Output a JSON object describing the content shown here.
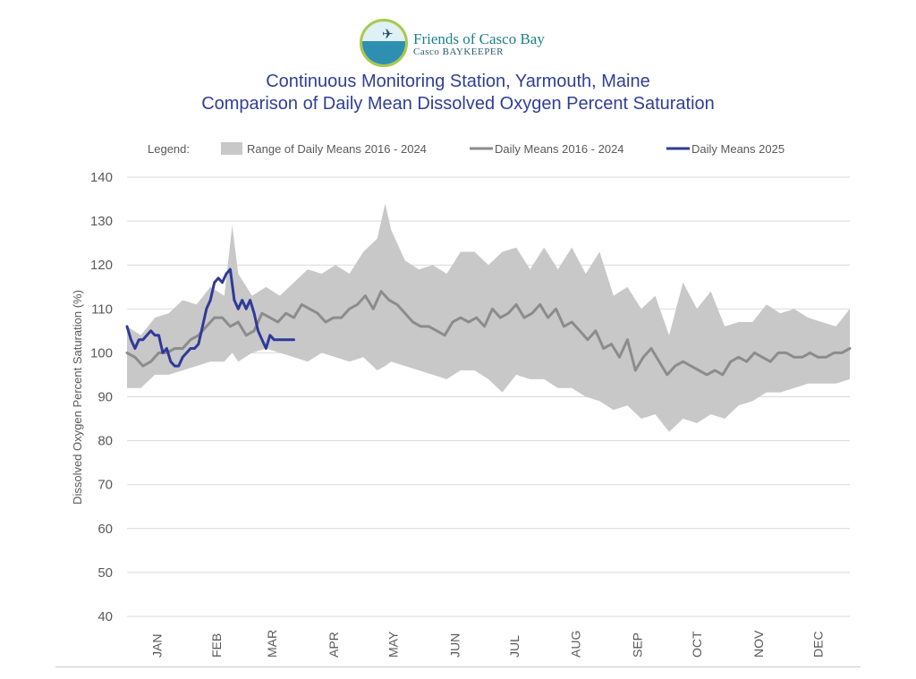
{
  "logo": {
    "line1": "Friends of Casco Bay",
    "line2": "Casco BAYKEEPER"
  },
  "title": {
    "line1": "Continuous Monitoring Station, Yarmouth, Maine",
    "line2": "Comparison of Daily Mean Dissolved Oxygen Percent Saturation"
  },
  "legend": {
    "prefix": "Legend:",
    "items": [
      {
        "label": "Range of Daily Means 2016 - 2024",
        "kind": "band",
        "color": "#c8c8c8"
      },
      {
        "label": "Daily Means 2016 - 2024",
        "kind": "line",
        "color": "#8c8c8c"
      },
      {
        "label": "Daily Means 2025",
        "kind": "line",
        "color": "#2e3a9a"
      }
    ]
  },
  "chart_data": {
    "type": "area",
    "ylabel": "Dissolved Oxygen Percent Saturation (%)",
    "xlabel": "",
    "ylim": [
      40,
      140
    ],
    "yticks": [
      40,
      50,
      60,
      70,
      80,
      90,
      100,
      110,
      120,
      130,
      140
    ],
    "xlim": [
      1,
      365
    ],
    "month_labels": [
      {
        "label": "JAN",
        "day": 16
      },
      {
        "label": "FEB",
        "day": 46
      },
      {
        "label": "MAR",
        "day": 74
      },
      {
        "label": "APR",
        "day": 105
      },
      {
        "label": "MAY",
        "day": 135
      },
      {
        "label": "JUN",
        "day": 166
      },
      {
        "label": "JUL",
        "day": 196
      },
      {
        "label": "AUG",
        "day": 227
      },
      {
        "label": "SEP",
        "day": 258
      },
      {
        "label": "OCT",
        "day": 288
      },
      {
        "label": "NOV",
        "day": 319
      },
      {
        "label": "DEC",
        "day": 349
      }
    ],
    "grid": true,
    "legend_position": "top",
    "series": [
      {
        "name": "Range of Daily Means 2016 - 2024",
        "kind": "band",
        "color": "#c8c8c8",
        "x": [
          1,
          8,
          15,
          22,
          29,
          36,
          43,
          50,
          54,
          57,
          64,
          71,
          78,
          85,
          92,
          99,
          106,
          113,
          120,
          127,
          131,
          134,
          141,
          148,
          155,
          162,
          169,
          176,
          183,
          190,
          197,
          204,
          211,
          218,
          225,
          232,
          239,
          246,
          253,
          260,
          267,
          274,
          281,
          288,
          295,
          302,
          309,
          316,
          323,
          330,
          337,
          344,
          351,
          358,
          365
        ],
        "upper": [
          106,
          104,
          108,
          109,
          112,
          111,
          115,
          113,
          129,
          118,
          113,
          115,
          113,
          116,
          119,
          118,
          120,
          118,
          123,
          126,
          134,
          128,
          121,
          119,
          120,
          118,
          123,
          123,
          120,
          123,
          124,
          119,
          124,
          119,
          124,
          118,
          123,
          113,
          115,
          110,
          113,
          104,
          116,
          110,
          114,
          106,
          107,
          107,
          111,
          109,
          110,
          108,
          107,
          106,
          110
        ],
        "lower": [
          92,
          92,
          95,
          95,
          96,
          97,
          98,
          98,
          100,
          98,
          100,
          101,
          100,
          99,
          98,
          100,
          99,
          98,
          99,
          96,
          97,
          98,
          97,
          96,
          95,
          94,
          96,
          96,
          94,
          91,
          95,
          94,
          94,
          92,
          92,
          90,
          89,
          87,
          88,
          85,
          86,
          82,
          85,
          84,
          86,
          85,
          88,
          89,
          91,
          91,
          92,
          93,
          93,
          93,
          94
        ]
      },
      {
        "name": "Daily Means 2016 - 2024",
        "kind": "line",
        "color": "#8c8c8c",
        "x": [
          1,
          5,
          9,
          13,
          17,
          21,
          25,
          29,
          33,
          37,
          41,
          45,
          49,
          53,
          57,
          61,
          65,
          69,
          73,
          77,
          81,
          85,
          89,
          93,
          97,
          101,
          105,
          109,
          113,
          117,
          121,
          125,
          129,
          133,
          137,
          141,
          145,
          149,
          153,
          157,
          161,
          165,
          169,
          173,
          177,
          181,
          185,
          189,
          193,
          197,
          201,
          205,
          209,
          213,
          217,
          221,
          225,
          229,
          233,
          237,
          241,
          245,
          249,
          253,
          257,
          261,
          265,
          269,
          273,
          277,
          281,
          285,
          289,
          293,
          297,
          301,
          305,
          309,
          313,
          317,
          321,
          325,
          329,
          333,
          337,
          341,
          345,
          349,
          353,
          357,
          361,
          365
        ],
        "y": [
          100,
          99,
          97,
          98,
          100,
          100,
          101,
          101,
          103,
          104,
          106,
          108,
          108,
          106,
          107,
          104,
          105,
          109,
          108,
          107,
          109,
          108,
          111,
          110,
          109,
          107,
          108,
          108,
          110,
          111,
          113,
          110,
          114,
          112,
          111,
          109,
          107,
          106,
          106,
          105,
          104,
          107,
          108,
          107,
          108,
          106,
          110,
          108,
          109,
          111,
          108,
          109,
          111,
          108,
          110,
          106,
          107,
          105,
          103,
          105,
          101,
          102,
          99,
          103,
          96,
          99,
          101,
          98,
          95,
          97,
          98,
          97,
          96,
          95,
          96,
          95,
          98,
          99,
          98,
          100,
          99,
          98,
          100,
          100,
          99,
          99,
          100,
          99,
          99,
          100,
          100,
          101
        ]
      },
      {
        "name": "Daily Means 2025",
        "kind": "line",
        "color": "#2e3a9a",
        "x": [
          1,
          3,
          5,
          7,
          9,
          11,
          13,
          15,
          17,
          19,
          21,
          23,
          25,
          27,
          29,
          31,
          33,
          35,
          37,
          39,
          41,
          43,
          45,
          47,
          49,
          51,
          53,
          55,
          57,
          58,
          59,
          61,
          63,
          65,
          67,
          69,
          71,
          73,
          75,
          77,
          79,
          81,
          83,
          85
        ],
        "y": [
          106,
          103,
          101,
          103,
          103,
          104,
          105,
          104,
          104,
          100,
          101,
          98,
          97,
          97,
          99,
          100,
          101,
          101,
          102,
          106,
          110,
          112,
          116,
          117,
          116,
          118,
          119,
          112,
          110,
          111,
          112,
          110,
          112,
          109,
          105,
          103,
          101,
          104,
          103,
          103,
          103,
          103,
          103,
          103
        ]
      }
    ]
  }
}
